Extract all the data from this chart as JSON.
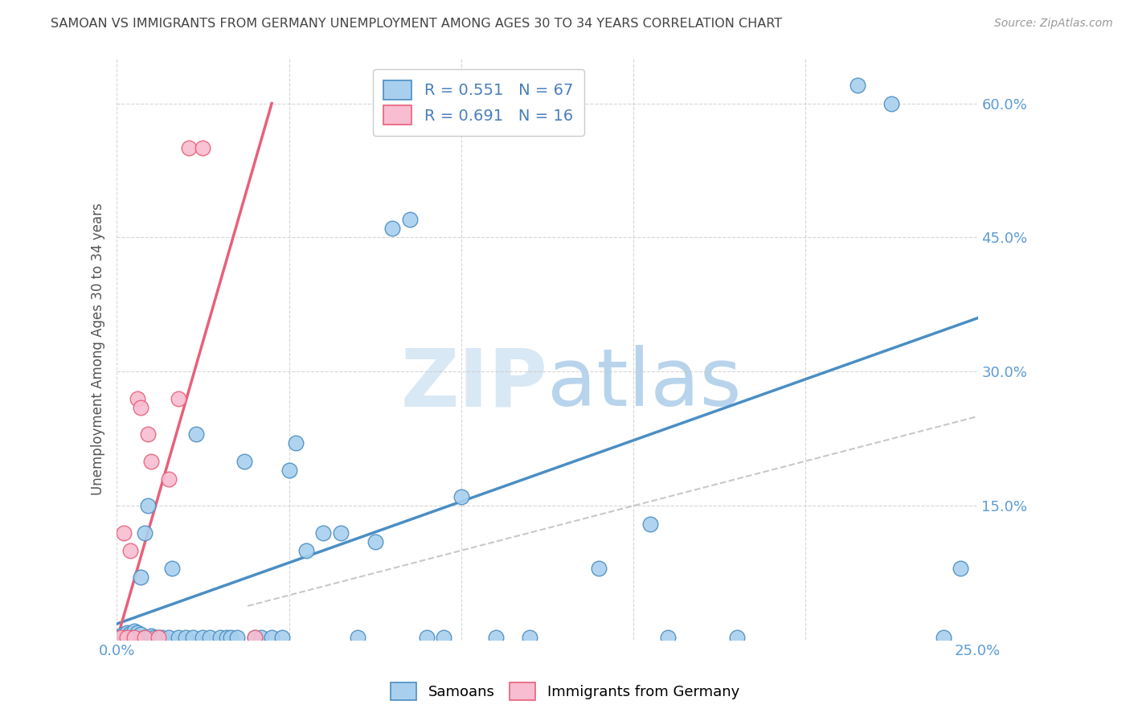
{
  "title": "SAMOAN VS IMMIGRANTS FROM GERMANY UNEMPLOYMENT AMONG AGES 30 TO 34 YEARS CORRELATION CHART",
  "source": "Source: ZipAtlas.com",
  "ylabel": "Unemployment Among Ages 30 to 34 years",
  "xlim": [
    0.0,
    0.25
  ],
  "ylim": [
    0.0,
    0.65
  ],
  "xticks": [
    0.0,
    0.05,
    0.1,
    0.15,
    0.2,
    0.25
  ],
  "xtick_labels": [
    "0.0%",
    "",
    "",
    "",
    "",
    "25.0%"
  ],
  "ytick_positions": [
    0.15,
    0.3,
    0.45,
    0.6
  ],
  "ytick_labels": [
    "15.0%",
    "30.0%",
    "45.0%",
    "60.0%"
  ],
  "blue_R": "0.551",
  "blue_N": "67",
  "pink_R": "0.691",
  "pink_N": "16",
  "blue_color": "#A8D0EE",
  "pink_color": "#F8BDD0",
  "blue_line_color": "#4A8EC4",
  "pink_line_color": "#E8607A",
  "grid_color": "#CCCCCC",
  "title_color": "#555555",
  "axis_tick_color": "#5B9BD5",
  "watermark_zip": "ZIP",
  "watermark_atlas": "atlas",
  "blue_scatter_x": [
    0.001,
    0.001,
    0.002,
    0.002,
    0.003,
    0.003,
    0.003,
    0.004,
    0.004,
    0.004,
    0.005,
    0.005,
    0.005,
    0.006,
    0.006,
    0.006,
    0.007,
    0.007,
    0.007,
    0.008,
    0.008,
    0.009,
    0.009,
    0.01,
    0.01,
    0.011,
    0.012,
    0.013,
    0.015,
    0.016,
    0.018,
    0.02,
    0.022,
    0.023,
    0.025,
    0.027,
    0.03,
    0.032,
    0.033,
    0.035,
    0.037,
    0.04,
    0.042,
    0.045,
    0.048,
    0.05,
    0.052,
    0.055,
    0.06,
    0.065,
    0.07,
    0.075,
    0.08,
    0.085,
    0.09,
    0.095,
    0.1,
    0.11,
    0.12,
    0.14,
    0.155,
    0.16,
    0.18,
    0.215,
    0.225,
    0.24,
    0.245
  ],
  "blue_scatter_y": [
    0.003,
    0.005,
    0.003,
    0.006,
    0.003,
    0.005,
    0.008,
    0.003,
    0.005,
    0.007,
    0.003,
    0.005,
    0.01,
    0.003,
    0.005,
    0.008,
    0.003,
    0.006,
    0.07,
    0.003,
    0.12,
    0.003,
    0.15,
    0.003,
    0.005,
    0.003,
    0.003,
    0.003,
    0.003,
    0.08,
    0.003,
    0.003,
    0.003,
    0.23,
    0.003,
    0.003,
    0.003,
    0.003,
    0.003,
    0.003,
    0.2,
    0.003,
    0.003,
    0.003,
    0.003,
    0.19,
    0.22,
    0.1,
    0.12,
    0.12,
    0.003,
    0.11,
    0.46,
    0.47,
    0.003,
    0.003,
    0.16,
    0.003,
    0.003,
    0.08,
    0.13,
    0.003,
    0.003,
    0.62,
    0.6,
    0.003,
    0.08
  ],
  "pink_scatter_x": [
    0.001,
    0.002,
    0.003,
    0.004,
    0.005,
    0.006,
    0.007,
    0.008,
    0.009,
    0.01,
    0.012,
    0.015,
    0.018,
    0.021,
    0.025,
    0.04
  ],
  "pink_scatter_y": [
    0.003,
    0.12,
    0.003,
    0.1,
    0.003,
    0.27,
    0.26,
    0.003,
    0.23,
    0.2,
    0.003,
    0.18,
    0.27,
    0.55,
    0.55,
    0.003
  ],
  "blue_line_x": [
    0.0,
    0.25
  ],
  "blue_line_y": [
    0.018,
    0.36
  ],
  "pink_line_x": [
    0.0,
    0.045
  ],
  "pink_line_y": [
    0.0,
    0.6
  ],
  "ref_line_x": [
    0.038,
    0.25
  ],
  "ref_line_y": [
    0.038,
    0.25
  ]
}
